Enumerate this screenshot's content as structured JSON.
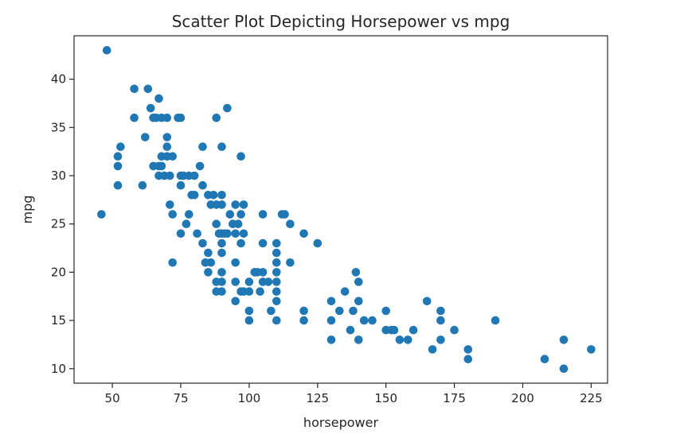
{
  "chart_data": {
    "type": "scatter",
    "title": "Scatter Plot Depicting Horsepower vs mpg",
    "xlabel": "horsepower",
    "ylabel": "mpg",
    "xlim": [
      36,
      231
    ],
    "ylim": [
      8.5,
      44.5
    ],
    "xticks": [
      50,
      75,
      100,
      125,
      150,
      175,
      200,
      225
    ],
    "yticks": [
      10,
      15,
      20,
      25,
      30,
      35,
      40
    ],
    "grid": false,
    "marker_color": "#1f77b4",
    "points": [
      [
        46,
        26
      ],
      [
        48,
        43
      ],
      [
        52,
        32
      ],
      [
        52,
        31
      ],
      [
        52,
        29
      ],
      [
        53,
        33
      ],
      [
        58,
        39
      ],
      [
        58,
        36
      ],
      [
        61,
        29
      ],
      [
        62,
        34
      ],
      [
        63,
        39
      ],
      [
        64,
        37
      ],
      [
        65,
        36
      ],
      [
        65,
        31
      ],
      [
        66,
        36
      ],
      [
        67,
        38
      ],
      [
        67,
        31
      ],
      [
        67,
        30
      ],
      [
        68,
        32
      ],
      [
        68,
        36
      ],
      [
        68,
        31
      ],
      [
        69,
        30
      ],
      [
        70,
        36
      ],
      [
        70,
        34
      ],
      [
        70,
        33
      ],
      [
        70,
        32
      ],
      [
        71,
        27
      ],
      [
        71,
        30
      ],
      [
        72,
        32
      ],
      [
        72,
        26
      ],
      [
        72,
        21
      ],
      [
        74,
        36
      ],
      [
        75,
        36
      ],
      [
        75,
        30
      ],
      [
        75,
        29
      ],
      [
        75,
        24
      ],
      [
        76,
        30
      ],
      [
        77,
        25
      ],
      [
        78,
        26
      ],
      [
        78,
        30
      ],
      [
        79,
        28
      ],
      [
        80,
        30
      ],
      [
        80,
        28
      ],
      [
        81,
        24
      ],
      [
        82,
        31
      ],
      [
        83,
        33
      ],
      [
        83,
        29
      ],
      [
        83,
        23
      ],
      [
        84,
        21
      ],
      [
        85,
        20
      ],
      [
        85,
        22
      ],
      [
        85,
        28
      ],
      [
        86,
        27
      ],
      [
        86,
        21
      ],
      [
        87,
        28
      ],
      [
        88,
        36
      ],
      [
        88,
        27
      ],
      [
        88,
        25
      ],
      [
        88,
        18
      ],
      [
        88,
        19
      ],
      [
        89,
        24
      ],
      [
        90,
        28
      ],
      [
        90,
        33
      ],
      [
        90,
        27
      ],
      [
        90,
        24
      ],
      [
        90,
        23
      ],
      [
        90,
        22
      ],
      [
        90,
        20
      ],
      [
        90,
        19
      ],
      [
        90,
        18
      ],
      [
        91,
        24
      ],
      [
        92,
        37
      ],
      [
        92,
        24
      ],
      [
        93,
        26
      ],
      [
        94,
        25
      ],
      [
        95,
        27
      ],
      [
        95,
        24
      ],
      [
        95,
        21
      ],
      [
        95,
        19
      ],
      [
        95,
        17
      ],
      [
        96,
        25
      ],
      [
        97,
        32
      ],
      [
        97,
        23
      ],
      [
        97,
        18
      ],
      [
        97,
        26
      ],
      [
        98,
        27
      ],
      [
        98,
        24
      ],
      [
        98,
        18
      ],
      [
        100,
        19
      ],
      [
        100,
        18
      ],
      [
        100,
        16
      ],
      [
        100,
        15
      ],
      [
        102,
        20
      ],
      [
        103,
        20
      ],
      [
        104,
        18
      ],
      [
        105,
        26
      ],
      [
        105,
        23
      ],
      [
        105,
        19
      ],
      [
        105,
        20
      ],
      [
        107,
        19
      ],
      [
        108,
        16
      ],
      [
        110,
        23
      ],
      [
        110,
        22
      ],
      [
        110,
        21
      ],
      [
        110,
        20
      ],
      [
        110,
        19
      ],
      [
        110,
        18
      ],
      [
        110,
        17
      ],
      [
        110,
        15
      ],
      [
        112,
        26
      ],
      [
        113,
        26
      ],
      [
        115,
        25
      ],
      [
        115,
        21
      ],
      [
        120,
        24
      ],
      [
        120,
        16
      ],
      [
        120,
        15
      ],
      [
        125,
        23
      ],
      [
        130,
        17
      ],
      [
        130,
        15
      ],
      [
        130,
        13
      ],
      [
        133,
        16
      ],
      [
        135,
        18
      ],
      [
        137,
        14
      ],
      [
        138,
        16
      ],
      [
        139,
        20
      ],
      [
        140,
        19
      ],
      [
        140,
        17
      ],
      [
        140,
        13
      ],
      [
        142,
        15
      ],
      [
        145,
        15
      ],
      [
        150,
        16
      ],
      [
        150,
        14
      ],
      [
        152,
        14
      ],
      [
        153,
        14
      ],
      [
        155,
        13
      ],
      [
        158,
        13
      ],
      [
        160,
        14
      ],
      [
        165,
        17
      ],
      [
        167,
        12
      ],
      [
        170,
        16
      ],
      [
        170,
        15
      ],
      [
        170,
        13
      ],
      [
        175,
        14
      ],
      [
        180,
        12
      ],
      [
        180,
        11
      ],
      [
        190,
        15
      ],
      [
        208,
        11
      ],
      [
        215,
        13
      ],
      [
        215,
        10
      ],
      [
        225,
        12
      ]
    ]
  }
}
